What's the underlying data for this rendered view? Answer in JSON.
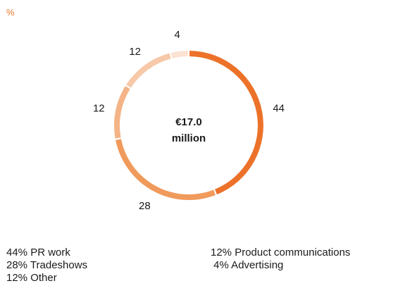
{
  "unit_label": "%",
  "center_label": [
    "€17.0",
    "million"
  ],
  "colors": {
    "unit": "#e8782a",
    "slices": [
      "#ec722a",
      "#f09a5b",
      "#f4b487",
      "#f7c9a8",
      "#fbe2d2"
    ]
  },
  "chart_data": {
    "type": "pie",
    "variant": "donut",
    "categories": [
      "PR work",
      "Tradeshows",
      "Other",
      "Product communications",
      "Advertising"
    ],
    "values": [
      44,
      28,
      12,
      12,
      4
    ],
    "value_labels": [
      "44",
      "28",
      "12",
      "12",
      "4"
    ],
    "title": "",
    "unit": "%"
  },
  "legend": [
    {
      "text": "44% PR work"
    },
    {
      "text": "28% Tradeshows"
    },
    {
      "text": "12% Other"
    },
    {
      "text": "12% Product communications"
    },
    {
      "text": " 4% Advertising"
    }
  ]
}
